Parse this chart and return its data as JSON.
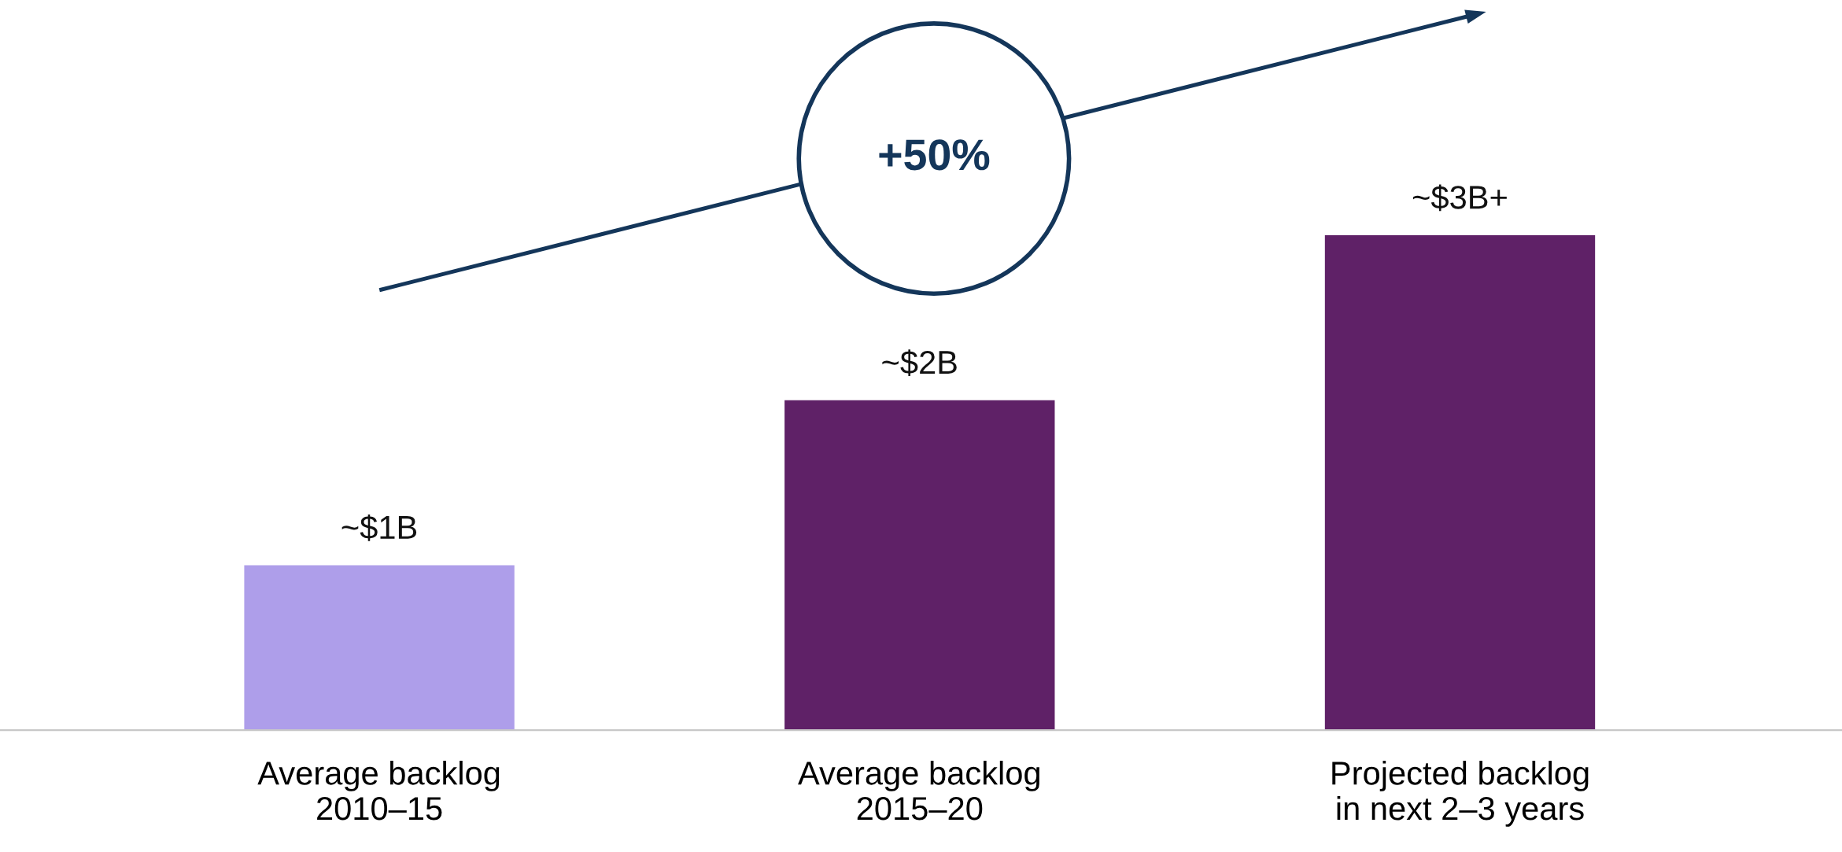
{
  "chart_data": {
    "type": "bar",
    "categories": [
      "Average backlog\n2010–15",
      "Average backlog\n2015–20",
      "Projected backlog\nin next 2–3 years"
    ],
    "values": [
      1,
      2,
      3
    ],
    "colors": [
      "#ae9eea",
      "#5f2167",
      "#5f2167"
    ],
    "value_labels": [
      "~$1B",
      "~$2B",
      "~$3B+"
    ],
    "annotations": [
      "+50%"
    ],
    "tick_labels": "x",
    "grid": false
  }
}
